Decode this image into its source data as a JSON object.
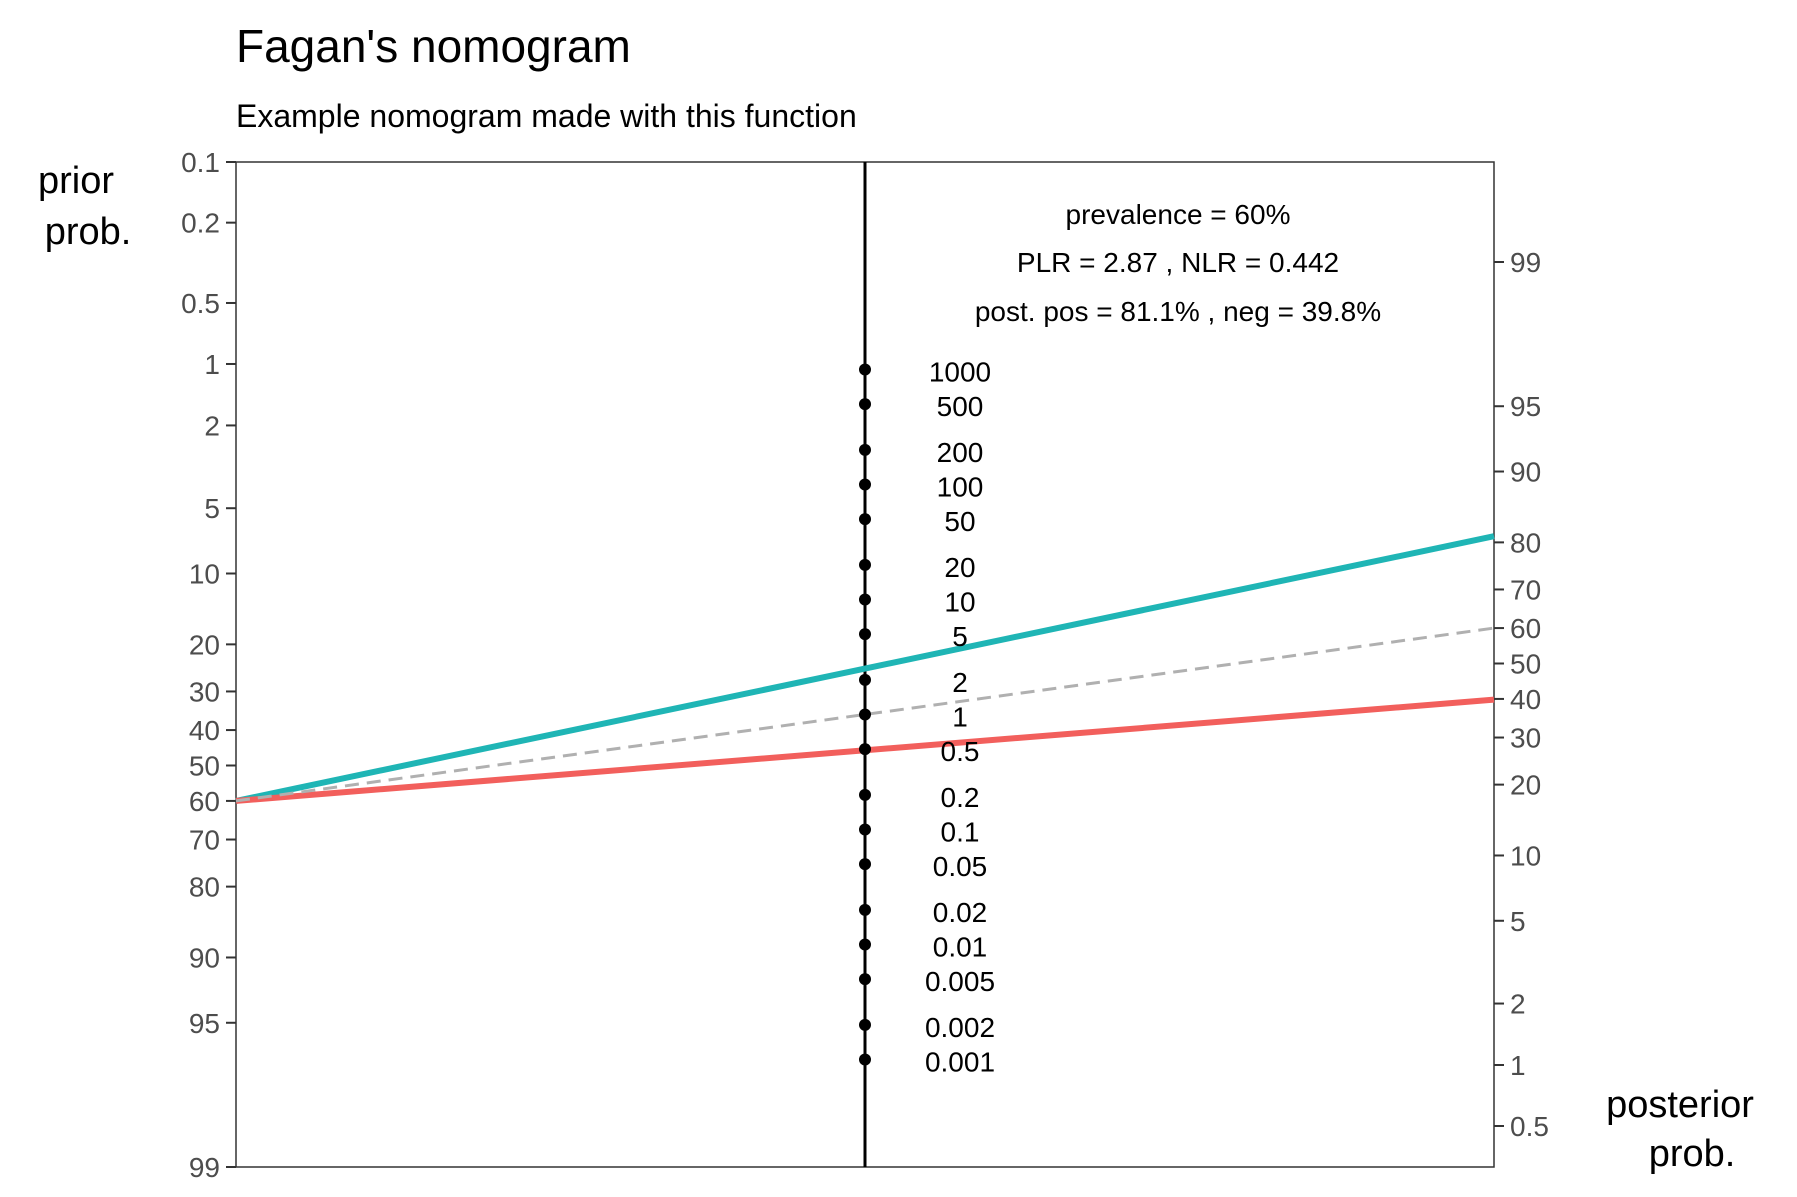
{
  "chart_data": {
    "type": "line",
    "title": "Fagan's nomogram",
    "subtitle": "Example nomogram made with this function",
    "left_axis": {
      "label_line1": "prior",
      "label_line2": "prob.",
      "ticks": [
        0.1,
        0.2,
        0.5,
        1,
        2,
        5,
        10,
        20,
        30,
        40,
        50,
        60,
        70,
        80,
        90,
        95,
        99
      ],
      "tick_labels": [
        "0.1",
        "0.2",
        "0.5",
        "1",
        "2",
        "5",
        "10",
        "20",
        "30",
        "40",
        "50",
        "60",
        "70",
        "80",
        "90",
        "95",
        "99"
      ],
      "direction": "descending",
      "scale": "logit"
    },
    "right_axis": {
      "label_line1": "posterior",
      "label_line2": "prob.",
      "ticks": [
        0.5,
        1,
        2,
        5,
        10,
        20,
        30,
        40,
        50,
        60,
        70,
        80,
        90,
        95,
        99
      ],
      "tick_labels": [
        "0.5",
        "1",
        "2",
        "5",
        "10",
        "20",
        "30",
        "40",
        "50",
        "60",
        "70",
        "80",
        "90",
        "95",
        "99"
      ],
      "direction": "ascending",
      "scale": "logit"
    },
    "likelihood_ratio_axis": {
      "values": [
        1000,
        500,
        200,
        100,
        50,
        20,
        10,
        5,
        2,
        1,
        0.5,
        0.2,
        0.1,
        0.05,
        0.02,
        0.01,
        0.005,
        0.002,
        0.001
      ],
      "labels": [
        "1000",
        "500",
        "200",
        "100",
        "50",
        "20",
        "10",
        "5",
        "2",
        "1",
        "0.5",
        "0.2",
        "0.1",
        "0.05",
        "0.02",
        "0.01",
        "0.005",
        "0.002",
        "0.001"
      ],
      "scale": "log"
    },
    "annotations": [
      "prevalence = 60%",
      "PLR = 2.87 , NLR = 0.442",
      "post. pos = 81.1% , neg = 39.8%"
    ],
    "prevalence": 60,
    "series": [
      {
        "name": "",
        "lr": 2.87,
        "prior": 60,
        "posterior": 81.1,
        "color": "#1fb5b5",
        "style": "solid"
      },
      {
        "name": "",
        "lr": 0.442,
        "prior": 60,
        "posterior": 39.8,
        "color": "#f25f5c",
        "style": "solid"
      },
      {
        "name": "",
        "lr": 1,
        "prior": 60,
        "posterior": 60,
        "color": "#b0b0b0",
        "style": "dashed"
      }
    ],
    "grid": false,
    "legend": "none"
  }
}
